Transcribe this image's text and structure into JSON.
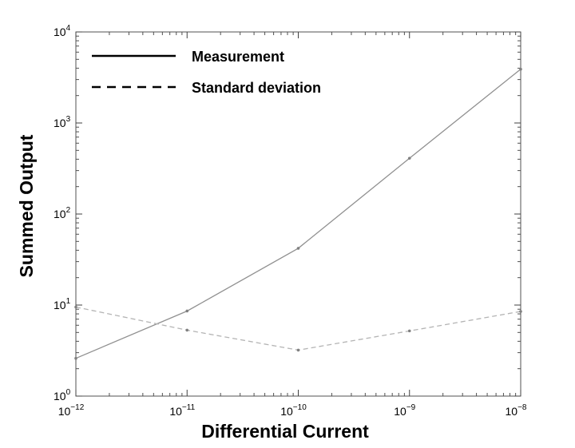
{
  "chart_data": {
    "type": "line",
    "title": "",
    "xlabel": "Differential Current",
    "ylabel": "Summed Output",
    "xscale": "log",
    "yscale": "log",
    "xlim": [
      1e-12,
      1e-08
    ],
    "ylim": [
      1,
      10000
    ],
    "x_ticks": [
      {
        "value": 1e-12,
        "base": "10",
        "exp": "−12"
      },
      {
        "value": 1e-11,
        "base": "10",
        "exp": "−11"
      },
      {
        "value": 1e-10,
        "base": "10",
        "exp": "−10"
      },
      {
        "value": 1e-09,
        "base": "10",
        "exp": "−9"
      },
      {
        "value": 1e-08,
        "base": "10",
        "exp": "−8"
      }
    ],
    "y_ticks": [
      {
        "value": 1,
        "base": "10",
        "exp": "0"
      },
      {
        "value": 10,
        "base": "10",
        "exp": "1"
      },
      {
        "value": 100,
        "base": "10",
        "exp": "2"
      },
      {
        "value": 1000,
        "base": "10",
        "exp": "3"
      },
      {
        "value": 10000,
        "base": "10",
        "exp": "4"
      }
    ],
    "grid": false,
    "legend_position": "top-left",
    "series": [
      {
        "name": "Measurement",
        "style": "solid",
        "color": "#909090",
        "x": [
          1e-12,
          1e-11,
          1e-10,
          1e-09,
          1e-08
        ],
        "y": [
          2.6,
          8.6,
          42,
          410,
          3900
        ]
      },
      {
        "name": "Standard deviation",
        "style": "dashed",
        "color": "#b4b4b4",
        "x": [
          1e-12,
          1e-11,
          1e-10,
          1e-09,
          1e-08
        ],
        "y": [
          9.5,
          5.3,
          3.2,
          5.2,
          8.5
        ]
      }
    ]
  }
}
